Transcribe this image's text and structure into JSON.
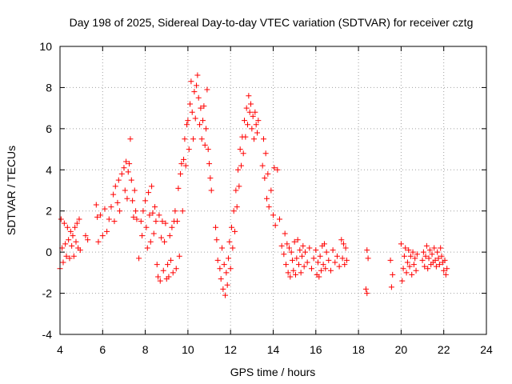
{
  "chart_data": {
    "type": "scatter",
    "title": "Day 198 of 2025, Sidereal Day-to-day VTEC variation (SDTVAR) for receiver cztg",
    "xlabel": "GPS time / hours",
    "ylabel": "SDTVAR / TECUs",
    "xlim": [
      4,
      24
    ],
    "ylim": [
      -4,
      10
    ],
    "xticks": [
      4,
      6,
      8,
      10,
      12,
      14,
      16,
      18,
      20,
      22,
      24
    ],
    "yticks": [
      -4,
      -2,
      0,
      2,
      4,
      6,
      8,
      10
    ],
    "grid": true,
    "marker": "+",
    "color": "#ff0000",
    "series": [
      {
        "name": "SDTVAR",
        "points": [
          [
            4.0,
            -0.8
          ],
          [
            4.05,
            1.6
          ],
          [
            4.1,
            0.2
          ],
          [
            4.15,
            -0.5
          ],
          [
            4.2,
            1.4
          ],
          [
            4.25,
            0.4
          ],
          [
            4.3,
            -0.2
          ],
          [
            4.35,
            1.2
          ],
          [
            4.4,
            0.6
          ],
          [
            4.45,
            -0.3
          ],
          [
            4.5,
            1.0
          ],
          [
            4.55,
            0.3
          ],
          [
            4.6,
            0.8
          ],
          [
            4.65,
            -0.2
          ],
          [
            4.7,
            1.2
          ],
          [
            4.75,
            0.5
          ],
          [
            4.8,
            1.4
          ],
          [
            4.85,
            0.2
          ],
          [
            4.9,
            1.6
          ],
          [
            4.95,
            0.1
          ],
          [
            5.2,
            0.8
          ],
          [
            5.3,
            0.6
          ],
          [
            5.7,
            2.3
          ],
          [
            5.75,
            1.7
          ],
          [
            5.8,
            0.5
          ],
          [
            5.9,
            1.8
          ],
          [
            6.0,
            0.8
          ],
          [
            6.1,
            2.1
          ],
          [
            6.2,
            1.0
          ],
          [
            6.3,
            1.6
          ],
          [
            6.4,
            2.2
          ],
          [
            6.5,
            2.8
          ],
          [
            6.55,
            1.5
          ],
          [
            6.6,
            3.2
          ],
          [
            6.7,
            2.4
          ],
          [
            6.75,
            3.5
          ],
          [
            6.8,
            2.0
          ],
          [
            6.9,
            3.8
          ],
          [
            7.0,
            4.1
          ],
          [
            7.05,
            3.0
          ],
          [
            7.1,
            4.4
          ],
          [
            7.15,
            2.6
          ],
          [
            7.2,
            3.9
          ],
          [
            7.25,
            4.3
          ],
          [
            7.3,
            5.5
          ],
          [
            7.35,
            3.5
          ],
          [
            7.4,
            2.5
          ],
          [
            7.45,
            1.7
          ],
          [
            7.5,
            3.0
          ],
          [
            7.55,
            2.0
          ],
          [
            7.6,
            1.6
          ],
          [
            7.7,
            -0.3
          ],
          [
            7.8,
            1.5
          ],
          [
            7.85,
            0.8
          ],
          [
            7.9,
            2.0
          ],
          [
            8.0,
            2.5
          ],
          [
            8.05,
            1.2
          ],
          [
            8.1,
            0.2
          ],
          [
            8.15,
            2.9
          ],
          [
            8.2,
            1.8
          ],
          [
            8.25,
            0.5
          ],
          [
            8.3,
            3.2
          ],
          [
            8.35,
            1.9
          ],
          [
            8.4,
            0.9
          ],
          [
            8.45,
            2.2
          ],
          [
            8.5,
            1.5
          ],
          [
            8.55,
            -0.6
          ],
          [
            8.6,
            -1.2
          ],
          [
            8.65,
            1.8
          ],
          [
            8.7,
            -1.4
          ],
          [
            8.75,
            0.7
          ],
          [
            8.8,
            1.5
          ],
          [
            8.85,
            -0.9
          ],
          [
            8.9,
            0.5
          ],
          [
            8.95,
            1.4
          ],
          [
            9.0,
            -1.3
          ],
          [
            9.05,
            -0.6
          ],
          [
            9.1,
            -1.2
          ],
          [
            9.15,
            0.8
          ],
          [
            9.2,
            -0.4
          ],
          [
            9.25,
            1.2
          ],
          [
            9.3,
            -1.0
          ],
          [
            9.35,
            1.5
          ],
          [
            9.4,
            2.0
          ],
          [
            9.45,
            -0.8
          ],
          [
            9.5,
            1.5
          ],
          [
            9.55,
            3.1
          ],
          [
            9.6,
            -0.2
          ],
          [
            9.65,
            3.8
          ],
          [
            9.7,
            4.3
          ],
          [
            9.75,
            2.0
          ],
          [
            9.8,
            4.5
          ],
          [
            9.85,
            5.5
          ],
          [
            9.9,
            4.2
          ],
          [
            9.95,
            6.2
          ],
          [
            10.0,
            6.4
          ],
          [
            10.05,
            5.0
          ],
          [
            10.1,
            7.2
          ],
          [
            10.15,
            8.3
          ],
          [
            10.2,
            6.8
          ],
          [
            10.25,
            5.5
          ],
          [
            10.3,
            7.8
          ],
          [
            10.35,
            6.5
          ],
          [
            10.4,
            8.1
          ],
          [
            10.45,
            8.6
          ],
          [
            10.5,
            7.5
          ],
          [
            10.55,
            6.2
          ],
          [
            10.6,
            7.0
          ],
          [
            10.65,
            5.5
          ],
          [
            10.7,
            6.4
          ],
          [
            10.75,
            7.1
          ],
          [
            10.8,
            5.2
          ],
          [
            10.85,
            6.0
          ],
          [
            10.9,
            7.9
          ],
          [
            10.95,
            5.0
          ],
          [
            11.0,
            4.3
          ],
          [
            11.05,
            3.6
          ],
          [
            11.1,
            3.0
          ],
          [
            11.3,
            1.2
          ],
          [
            11.35,
            0.6
          ],
          [
            11.4,
            -0.4
          ],
          [
            11.5,
            -0.8
          ],
          [
            11.55,
            -1.3
          ],
          [
            11.6,
            0.2
          ],
          [
            11.65,
            -1.8
          ],
          [
            11.7,
            -0.6
          ],
          [
            11.75,
            -2.1
          ],
          [
            11.8,
            -1.0
          ],
          [
            11.85,
            -1.6
          ],
          [
            11.9,
            -0.3
          ],
          [
            11.95,
            0.5
          ],
          [
            12.0,
            -0.8
          ],
          [
            12.05,
            1.2
          ],
          [
            12.1,
            0.2
          ],
          [
            12.15,
            2.0
          ],
          [
            12.2,
            1.0
          ],
          [
            12.25,
            3.0
          ],
          [
            12.3,
            2.2
          ],
          [
            12.35,
            4.0
          ],
          [
            12.4,
            3.2
          ],
          [
            12.45,
            5.0
          ],
          [
            12.5,
            4.2
          ],
          [
            12.55,
            5.6
          ],
          [
            12.6,
            4.8
          ],
          [
            12.65,
            6.4
          ],
          [
            12.7,
            5.6
          ],
          [
            12.75,
            7.0
          ],
          [
            12.8,
            6.2
          ],
          [
            12.85,
            7.6
          ],
          [
            12.9,
            6.8
          ],
          [
            12.95,
            7.2
          ],
          [
            13.0,
            6.0
          ],
          [
            13.05,
            6.6
          ],
          [
            13.1,
            5.5
          ],
          [
            13.15,
            6.8
          ],
          [
            13.2,
            6.2
          ],
          [
            13.25,
            5.8
          ],
          [
            13.3,
            6.4
          ],
          [
            13.5,
            4.2
          ],
          [
            13.55,
            5.5
          ],
          [
            13.6,
            3.6
          ],
          [
            13.65,
            4.8
          ],
          [
            13.7,
            2.6
          ],
          [
            13.75,
            3.8
          ],
          [
            13.8,
            2.2
          ],
          [
            13.9,
            3.0
          ],
          [
            14.0,
            1.8
          ],
          [
            14.05,
            4.1
          ],
          [
            14.1,
            1.3
          ],
          [
            14.2,
            4.0
          ],
          [
            14.3,
            1.6
          ],
          [
            14.4,
            0.3
          ],
          [
            14.5,
            -0.1
          ],
          [
            14.55,
            0.9
          ],
          [
            14.6,
            -0.6
          ],
          [
            14.65,
            0.4
          ],
          [
            14.7,
            -1.0
          ],
          [
            14.75,
            0.2
          ],
          [
            14.8,
            -1.2
          ],
          [
            14.85,
            0.0
          ],
          [
            14.9,
            -0.4
          ],
          [
            14.95,
            -0.9
          ],
          [
            15.0,
            0.5
          ],
          [
            15.05,
            -1.1
          ],
          [
            15.1,
            -0.3
          ],
          [
            15.15,
            0.6
          ],
          [
            15.2,
            -0.6
          ],
          [
            15.25,
            0.1
          ],
          [
            15.3,
            -1.0
          ],
          [
            15.35,
            -0.2
          ],
          [
            15.4,
            0.3
          ],
          [
            15.45,
            -0.7
          ],
          [
            15.5,
            0.0
          ],
          [
            15.6,
            -0.5
          ],
          [
            15.7,
            0.2
          ],
          [
            15.8,
            -0.8
          ],
          [
            15.9,
            -0.3
          ],
          [
            16.0,
            0.1
          ],
          [
            16.05,
            -1.1
          ],
          [
            16.1,
            -0.5
          ],
          [
            16.15,
            -1.2
          ],
          [
            16.2,
            -0.2
          ],
          [
            16.25,
            -0.9
          ],
          [
            16.3,
            0.3
          ],
          [
            16.35,
            -0.6
          ],
          [
            16.4,
            0.4
          ],
          [
            16.45,
            -0.8
          ],
          [
            16.5,
            0.0
          ],
          [
            16.6,
            -0.4
          ],
          [
            16.7,
            -0.9
          ],
          [
            16.8,
            0.1
          ],
          [
            16.9,
            -0.5
          ],
          [
            17.0,
            -0.2
          ],
          [
            17.1,
            -0.7
          ],
          [
            17.2,
            0.6
          ],
          [
            17.25,
            -0.3
          ],
          [
            17.3,
            0.4
          ],
          [
            17.35,
            -0.6
          ],
          [
            17.4,
            0.2
          ],
          [
            17.45,
            -0.4
          ],
          [
            18.4,
            0.1
          ],
          [
            18.45,
            -0.3
          ],
          [
            18.35,
            -1.8
          ],
          [
            18.4,
            -2.0
          ],
          [
            19.5,
            -0.4
          ],
          [
            19.6,
            -1.1
          ],
          [
            19.55,
            -1.7
          ],
          [
            20.0,
            0.4
          ],
          [
            20.05,
            -1.4
          ],
          [
            20.1,
            -0.8
          ],
          [
            20.15,
            -0.2
          ],
          [
            20.2,
            0.2
          ],
          [
            20.25,
            -1.0
          ],
          [
            20.3,
            -0.5
          ],
          [
            20.35,
            0.1
          ],
          [
            20.4,
            -0.7
          ],
          [
            20.45,
            -0.2
          ],
          [
            20.5,
            -1.1
          ],
          [
            20.55,
            0.0
          ],
          [
            20.6,
            -0.6
          ],
          [
            20.65,
            -0.3
          ],
          [
            20.7,
            -0.9
          ],
          [
            20.75,
            -0.1
          ],
          [
            21.0,
            -0.4
          ],
          [
            21.05,
            0.0
          ],
          [
            21.1,
            -0.7
          ],
          [
            21.15,
            -0.2
          ],
          [
            21.2,
            0.3
          ],
          [
            21.25,
            -0.8
          ],
          [
            21.3,
            -0.3
          ],
          [
            21.35,
            0.1
          ],
          [
            21.4,
            -0.6
          ],
          [
            21.45,
            -0.1
          ],
          [
            21.5,
            -0.5
          ],
          [
            21.55,
            0.2
          ],
          [
            21.6,
            -0.4
          ],
          [
            21.65,
            -0.7
          ],
          [
            21.7,
            0.0
          ],
          [
            21.75,
            -0.3
          ],
          [
            21.8,
            -0.6
          ],
          [
            21.85,
            0.2
          ],
          [
            21.9,
            -0.2
          ],
          [
            21.95,
            -0.5
          ],
          [
            22.0,
            -0.9
          ],
          [
            22.05,
            -0.4
          ],
          [
            22.1,
            -1.1
          ],
          [
            22.15,
            -0.8
          ]
        ]
      }
    ]
  }
}
